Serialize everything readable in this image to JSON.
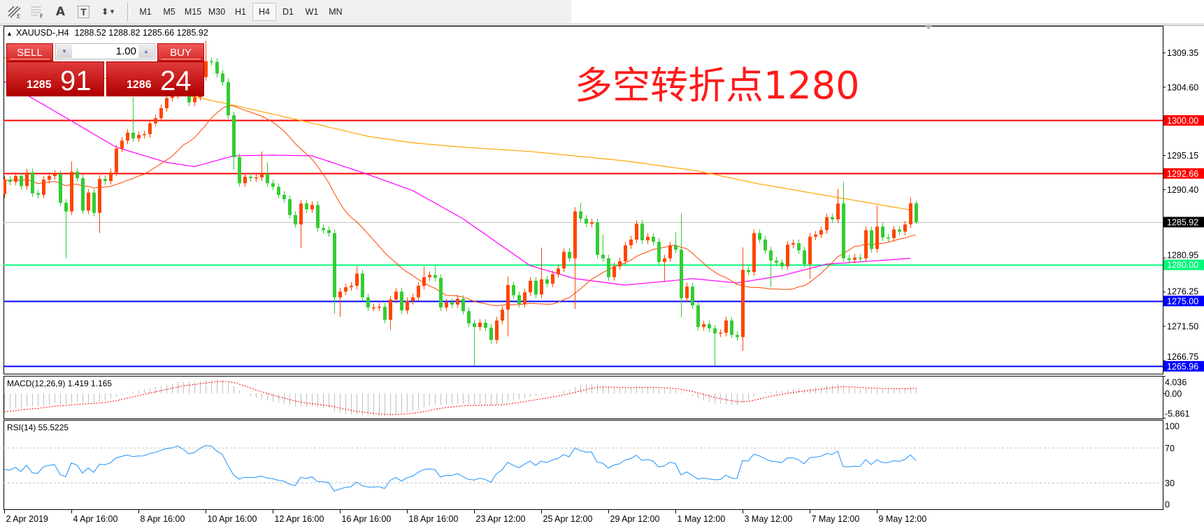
{
  "toolbar": {
    "tools": [
      {
        "name": "equidistant-channel-icon",
        "glyph": "E"
      },
      {
        "name": "fibonacci-icon",
        "glyph": "F"
      },
      {
        "name": "text-icon",
        "glyph": "A"
      },
      {
        "name": "text-label-icon",
        "glyph": "T"
      },
      {
        "name": "arrows-icon",
        "glyph": "▾"
      }
    ],
    "timeframes": [
      "M1",
      "M5",
      "M15",
      "M30",
      "H1",
      "H4",
      "D1",
      "W1",
      "MN"
    ],
    "active_timeframe": "H4"
  },
  "chart": {
    "symbol": "XAUUSD-,H4",
    "ohlc": "1288.52 1288.82 1285.66 1285.92",
    "annotation": "多空转折点1280"
  },
  "trade_panel": {
    "sell_label": "SELL",
    "buy_label": "BUY",
    "lot": "1.00",
    "bid_big": "1285",
    "bid_pips": "91",
    "ask_big": "1286",
    "ask_pips": "24"
  },
  "price_axis": {
    "ticks": [
      "1309.35",
      "1304.60",
      "1295.15",
      "1290.40",
      "1280.95",
      "1276.25",
      "1271.50",
      "1266.75"
    ]
  },
  "levels": [
    {
      "value": "1300.00",
      "color": "#ff0000",
      "text_color": "#ffffff"
    },
    {
      "value": "1292.66",
      "color": "#ff0000",
      "text_color": "#ffffff"
    },
    {
      "value": "1285.92",
      "color": "#000000",
      "text_color": "#ffffff",
      "line_color": "#c0c0c0",
      "kind": "bid"
    },
    {
      "value": "1280.00",
      "color": "#00fa7a",
      "text_color": "#ffffff"
    },
    {
      "value": "1275.00",
      "color": "#0000ff",
      "text_color": "#ffffff"
    },
    {
      "value": "1265.96",
      "color": "#0000ff",
      "text_color": "#ffffff"
    }
  ],
  "time_axis": {
    "labels": [
      "2 Apr 2019",
      "4 Apr 16:00",
      "8 Apr 16:00",
      "10 Apr 16:00",
      "12 Apr 16:00",
      "16 Apr 16:00",
      "18 Apr 16:00",
      "23 Apr 12:00",
      "25 Apr 12:00",
      "29 Apr 12:00",
      "1 May 12:00",
      "3 May 12:00",
      "7 May 12:00",
      "9 May 12:00"
    ]
  },
  "macd": {
    "label": "MACD(12,26,9) 1.419 1.165",
    "ticks": [
      "4.036",
      "0.00",
      "-5.861"
    ],
    "main": 1.419,
    "signal": 1.165
  },
  "rsi": {
    "label": "RSI(14) 55.5225",
    "ticks": [
      "100",
      "70",
      "30",
      "0"
    ],
    "levels": [
      70,
      30
    ],
    "value": 55.5225
  },
  "colors": {
    "bull": "#ff4500",
    "bear": "#32cd32",
    "ma_fast": "#ff4500",
    "ma_mid": "#ff00ff",
    "ma_slow": "#ffa500",
    "rsi_line": "#1e90ff",
    "macd_hist": "#c0c0c0",
    "macd_signal": "#ff0000",
    "annotation": "#ff1a1a"
  },
  "chart_data": {
    "type": "candlestick",
    "symbol": "XAUUSD-",
    "timeframe": "H4",
    "ylim": [
      1265.96,
      1311.5
    ],
    "first_open": 1289.8,
    "close": [
      1291.8,
      1291.5,
      1292.3,
      1290.9,
      1292.8,
      1289.9,
      1289.7,
      1291.8,
      1292.3,
      1292.6,
      1288.6,
      1287.4,
      1292.9,
      1292.0,
      1287.5,
      1290.0,
      1287.2,
      1291.9,
      1291.6,
      1292.8,
      1296.1,
      1297.2,
      1298.3,
      1297.5,
      1298.0,
      1298.1,
      1299.6,
      1300.3,
      1301.7,
      1303.1,
      1303.5,
      1305.0,
      1304.0,
      1302.5,
      1303.2,
      1306.0,
      1308.2,
      1308.1,
      1306.5,
      1305.3,
      1300.7,
      1294.9,
      1291.3,
      1292.2,
      1292.0,
      1292.1,
      1292.6,
      1291.3,
      1290.8,
      1289.7,
      1289.1,
      1286.9,
      1285.6,
      1288.5,
      1287.7,
      1288.3,
      1285.1,
      1284.8,
      1284.4,
      1275.5,
      1276.3,
      1276.9,
      1277.1,
      1278.8,
      1275.5,
      1274.1,
      1274.1,
      1274.2,
      1272.4,
      1275.2,
      1276.3,
      1273.7,
      1275.0,
      1275.5,
      1277.1,
      1278.3,
      1278.6,
      1278.2,
      1274.1,
      1274.8,
      1274.5,
      1275.3,
      1273.6,
      1271.9,
      1271.4,
      1272.0,
      1271.3,
      1269.6,
      1272.3,
      1273.8,
      1277.2,
      1275.8,
      1274.6,
      1276.2,
      1277.8,
      1275.9,
      1278.0,
      1277.4,
      1278.7,
      1279.5,
      1281.8,
      1280.9,
      1287.4,
      1286.4,
      1285.7,
      1285.9,
      1281.4,
      1280.9,
      1278.3,
      1279.8,
      1280.5,
      1282.7,
      1283.5,
      1285.7,
      1283.4,
      1283.9,
      1283.2,
      1280.4,
      1280.9,
      1282.7,
      1282.1,
      1275.4,
      1277.0,
      1274.4,
      1271.4,
      1271.8,
      1271.2,
      1270.5,
      1270.6,
      1272.3,
      1270.3,
      1270.0,
      1279.3,
      1279.0,
      1284.4,
      1283.5,
      1282.0,
      1280.6,
      1280.3,
      1279.8,
      1282.8,
      1283.0,
      1282.0,
      1280.1,
      1283.9,
      1284.2,
      1284.8,
      1286.6,
      1286.3,
      1288.5,
      1280.9,
      1280.7,
      1281.0,
      1280.9,
      1284.8,
      1282.2,
      1285.3,
      1283.8,
      1283.7,
      1284.9,
      1284.6,
      1285.6,
      1288.52,
      1285.92
    ],
    "last_bar": {
      "open": 1288.52,
      "high": 1288.82,
      "low": 1285.66,
      "close": 1285.92
    },
    "long_wicks": [
      {
        "i": 11,
        "low": 1280.9
      },
      {
        "i": 12,
        "high": 1294.3,
        "low": 1286.9
      },
      {
        "i": 17,
        "low": 1284.4
      },
      {
        "i": 23,
        "high": 1303.2
      },
      {
        "i": 36,
        "high": 1311.0
      },
      {
        "i": 41,
        "low": 1293.2
      },
      {
        "i": 46,
        "high": 1295.7
      },
      {
        "i": 47,
        "high": 1294.2
      },
      {
        "i": 53,
        "low": 1282.3
      },
      {
        "i": 59,
        "low": 1273.2
      },
      {
        "i": 60,
        "low": 1272.8
      },
      {
        "i": 63,
        "high": 1279.8
      },
      {
        "i": 69,
        "low": 1271.0
      },
      {
        "i": 75,
        "high": 1279.8
      },
      {
        "i": 77,
        "high": 1279.8
      },
      {
        "i": 84,
        "low": 1266.1
      },
      {
        "i": 88,
        "low": 1269.1
      },
      {
        "i": 90,
        "high": 1278.4,
        "low": 1270.1
      },
      {
        "i": 96,
        "high": 1282.4
      },
      {
        "i": 102,
        "high": 1288.0,
        "low": 1273.9
      },
      {
        "i": 103,
        "high": 1288.6
      },
      {
        "i": 107,
        "high": 1284.2
      },
      {
        "i": 118,
        "low": 1277.7
      },
      {
        "i": 120,
        "high": 1284.5
      },
      {
        "i": 121,
        "high": 1287.1,
        "low": 1272.7
      },
      {
        "i": 127,
        "low": 1266.1
      },
      {
        "i": 132,
        "high": 1282.4,
        "low": 1268.1
      },
      {
        "i": 137,
        "low": 1276.9
      },
      {
        "i": 144,
        "low": 1278.1
      },
      {
        "i": 149,
        "high": 1290.5
      },
      {
        "i": 150,
        "high": 1291.5
      },
      {
        "i": 156,
        "high": 1288.2
      },
      {
        "i": 162,
        "high": 1289.3
      }
    ],
    "ma_fast_period": 21,
    "ma_mid": [
      [
        0,
        1305.4
      ],
      [
        5,
        1303.1
      ],
      [
        20,
        1296.3
      ],
      [
        29,
        1294.2
      ],
      [
        34,
        1293.6
      ],
      [
        41,
        1295.1
      ],
      [
        48,
        1295.2
      ],
      [
        55,
        1295.1
      ],
      [
        64,
        1292.8
      ],
      [
        73,
        1290.3
      ],
      [
        82,
        1286.4
      ],
      [
        94,
        1279.9
      ],
      [
        102,
        1278.1
      ],
      [
        111,
        1277.2
      ],
      [
        118,
        1277.7
      ],
      [
        123,
        1278.1
      ],
      [
        131,
        1277.5
      ],
      [
        139,
        1278.5
      ],
      [
        147,
        1280.1
      ],
      [
        162,
        1280.9
      ]
    ],
    "ma_slow": [
      [
        0,
        1308.7
      ],
      [
        35,
        1303.1
      ],
      [
        41,
        1302.1
      ],
      [
        53,
        1300.0
      ],
      [
        65,
        1297.8
      ],
      [
        73,
        1296.9
      ],
      [
        82,
        1296.3
      ],
      [
        94,
        1295.7
      ],
      [
        111,
        1294.4
      ],
      [
        124,
        1293.0
      ],
      [
        135,
        1291.2
      ],
      [
        147,
        1289.6
      ],
      [
        162,
        1287.6
      ]
    ]
  }
}
